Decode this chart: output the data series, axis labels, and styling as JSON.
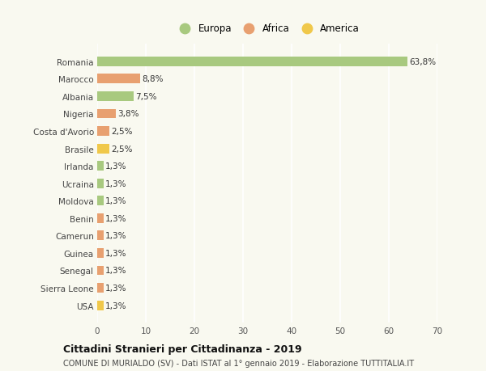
{
  "categories": [
    "Romania",
    "Marocco",
    "Albania",
    "Nigeria",
    "Costa d'Avorio",
    "Brasile",
    "Irlanda",
    "Ucraina",
    "Moldova",
    "Benin",
    "Camerun",
    "Guinea",
    "Senegal",
    "Sierra Leone",
    "USA"
  ],
  "values": [
    63.8,
    8.8,
    7.5,
    3.8,
    2.5,
    2.5,
    1.3,
    1.3,
    1.3,
    1.3,
    1.3,
    1.3,
    1.3,
    1.3,
    1.3
  ],
  "labels": [
    "63,8%",
    "8,8%",
    "7,5%",
    "3,8%",
    "2,5%",
    "2,5%",
    "1,3%",
    "1,3%",
    "1,3%",
    "1,3%",
    "1,3%",
    "1,3%",
    "1,3%",
    "1,3%",
    "1,3%"
  ],
  "continents": [
    "Europa",
    "Africa",
    "Europa",
    "Africa",
    "Africa",
    "America",
    "Europa",
    "Europa",
    "Europa",
    "Africa",
    "Africa",
    "Africa",
    "Africa",
    "Africa",
    "America"
  ],
  "colors": {
    "Europa": "#a8c97f",
    "Africa": "#e8a070",
    "America": "#f0c84a"
  },
  "legend_labels": [
    "Europa",
    "Africa",
    "America"
  ],
  "title1": "Cittadini Stranieri per Cittadinanza - 2019",
  "title2": "COMUNE DI MURIALDO (SV) - Dati ISTAT al 1° gennaio 2019 - Elaborazione TUTTITALIA.IT",
  "xlim": [
    0,
    70
  ],
  "xticks": [
    0,
    10,
    20,
    30,
    40,
    50,
    60,
    70
  ],
  "background_color": "#f9f9f0",
  "grid_color": "#ffffff",
  "bar_height": 0.55,
  "label_fontsize": 7.5,
  "ytick_fontsize": 7.5,
  "xtick_fontsize": 7.5,
  "legend_fontsize": 8.5,
  "title1_fontsize": 9.0,
  "title2_fontsize": 7.0
}
